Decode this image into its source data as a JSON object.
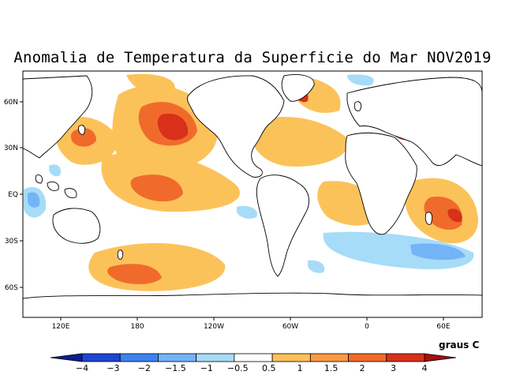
{
  "map": {
    "title": "Anomalia de Temperatura da Superficie do Mar NOV2019",
    "lon_labels": [
      "120E",
      "180",
      "120W",
      "60W",
      "0",
      "60E"
    ],
    "lat_labels": [
      "60N",
      "30N",
      "EQ",
      "30S",
      "60S"
    ],
    "land_color": "#ffffff",
    "coast_color": "#000000"
  },
  "legend": {
    "units": "graus C",
    "levels": [
      "−4",
      "−3",
      "−2",
      "−1.5",
      "−1",
      "−0.5",
      "0.5",
      "1",
      "1.5",
      "2",
      "3",
      "4"
    ],
    "colors": [
      "#0a1f8f",
      "#1e46d2",
      "#3d82f0",
      "#73b4f7",
      "#a6dcf7",
      "#ffffff",
      "#fcc25a",
      "#fb9a43",
      "#f06b2b",
      "#d8301a",
      "#a50f0f"
    ]
  }
}
